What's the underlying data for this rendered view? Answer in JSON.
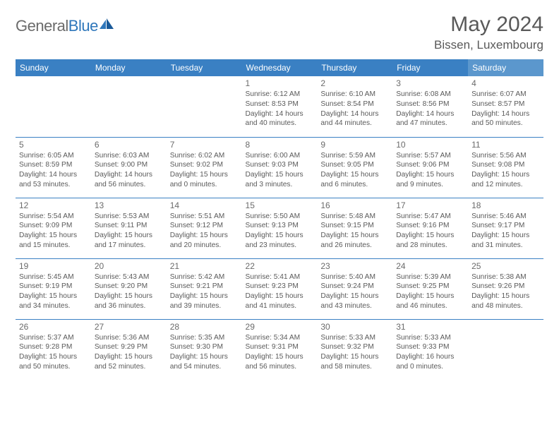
{
  "logo": {
    "part1": "General",
    "part2": "Blue"
  },
  "title": "May 2024",
  "location": "Bissen, Luxembourg",
  "colors": {
    "header_bg": "#3a80c3",
    "header_bg_sat": "#5b97cd",
    "header_text": "#ffffff",
    "border": "#3a80c3",
    "text_gray": "#6b6b6b",
    "detail_gray": "#5a5a5a",
    "title_gray": "#595959",
    "logo_gray": "#6b6b6b",
    "logo_blue": "#2f77bb",
    "background": "#ffffff"
  },
  "typography": {
    "title_fontsize": 30,
    "location_fontsize": 17,
    "logo_fontsize": 22,
    "dayheader_fontsize": 12,
    "daynum_fontsize": 12,
    "detail_fontsize": 10.2
  },
  "day_headers": [
    "Sunday",
    "Monday",
    "Tuesday",
    "Wednesday",
    "Thursday",
    "Friday",
    "Saturday"
  ],
  "weeks": [
    [
      null,
      null,
      null,
      {
        "n": "1",
        "sr": "6:12 AM",
        "ss": "8:53 PM",
        "dl": "14 hours and 40 minutes."
      },
      {
        "n": "2",
        "sr": "6:10 AM",
        "ss": "8:54 PM",
        "dl": "14 hours and 44 minutes."
      },
      {
        "n": "3",
        "sr": "6:08 AM",
        "ss": "8:56 PM",
        "dl": "14 hours and 47 minutes."
      },
      {
        "n": "4",
        "sr": "6:07 AM",
        "ss": "8:57 PM",
        "dl": "14 hours and 50 minutes."
      }
    ],
    [
      {
        "n": "5",
        "sr": "6:05 AM",
        "ss": "8:59 PM",
        "dl": "14 hours and 53 minutes."
      },
      {
        "n": "6",
        "sr": "6:03 AM",
        "ss": "9:00 PM",
        "dl": "14 hours and 56 minutes."
      },
      {
        "n": "7",
        "sr": "6:02 AM",
        "ss": "9:02 PM",
        "dl": "15 hours and 0 minutes."
      },
      {
        "n": "8",
        "sr": "6:00 AM",
        "ss": "9:03 PM",
        "dl": "15 hours and 3 minutes."
      },
      {
        "n": "9",
        "sr": "5:59 AM",
        "ss": "9:05 PM",
        "dl": "15 hours and 6 minutes."
      },
      {
        "n": "10",
        "sr": "5:57 AM",
        "ss": "9:06 PM",
        "dl": "15 hours and 9 minutes."
      },
      {
        "n": "11",
        "sr": "5:56 AM",
        "ss": "9:08 PM",
        "dl": "15 hours and 12 minutes."
      }
    ],
    [
      {
        "n": "12",
        "sr": "5:54 AM",
        "ss": "9:09 PM",
        "dl": "15 hours and 15 minutes."
      },
      {
        "n": "13",
        "sr": "5:53 AM",
        "ss": "9:11 PM",
        "dl": "15 hours and 17 minutes."
      },
      {
        "n": "14",
        "sr": "5:51 AM",
        "ss": "9:12 PM",
        "dl": "15 hours and 20 minutes."
      },
      {
        "n": "15",
        "sr": "5:50 AM",
        "ss": "9:13 PM",
        "dl": "15 hours and 23 minutes."
      },
      {
        "n": "16",
        "sr": "5:48 AM",
        "ss": "9:15 PM",
        "dl": "15 hours and 26 minutes."
      },
      {
        "n": "17",
        "sr": "5:47 AM",
        "ss": "9:16 PM",
        "dl": "15 hours and 28 minutes."
      },
      {
        "n": "18",
        "sr": "5:46 AM",
        "ss": "9:17 PM",
        "dl": "15 hours and 31 minutes."
      }
    ],
    [
      {
        "n": "19",
        "sr": "5:45 AM",
        "ss": "9:19 PM",
        "dl": "15 hours and 34 minutes."
      },
      {
        "n": "20",
        "sr": "5:43 AM",
        "ss": "9:20 PM",
        "dl": "15 hours and 36 minutes."
      },
      {
        "n": "21",
        "sr": "5:42 AM",
        "ss": "9:21 PM",
        "dl": "15 hours and 39 minutes."
      },
      {
        "n": "22",
        "sr": "5:41 AM",
        "ss": "9:23 PM",
        "dl": "15 hours and 41 minutes."
      },
      {
        "n": "23",
        "sr": "5:40 AM",
        "ss": "9:24 PM",
        "dl": "15 hours and 43 minutes."
      },
      {
        "n": "24",
        "sr": "5:39 AM",
        "ss": "9:25 PM",
        "dl": "15 hours and 46 minutes."
      },
      {
        "n": "25",
        "sr": "5:38 AM",
        "ss": "9:26 PM",
        "dl": "15 hours and 48 minutes."
      }
    ],
    [
      {
        "n": "26",
        "sr": "5:37 AM",
        "ss": "9:28 PM",
        "dl": "15 hours and 50 minutes."
      },
      {
        "n": "27",
        "sr": "5:36 AM",
        "ss": "9:29 PM",
        "dl": "15 hours and 52 minutes."
      },
      {
        "n": "28",
        "sr": "5:35 AM",
        "ss": "9:30 PM",
        "dl": "15 hours and 54 minutes."
      },
      {
        "n": "29",
        "sr": "5:34 AM",
        "ss": "9:31 PM",
        "dl": "15 hours and 56 minutes."
      },
      {
        "n": "30",
        "sr": "5:33 AM",
        "ss": "9:32 PM",
        "dl": "15 hours and 58 minutes."
      },
      {
        "n": "31",
        "sr": "5:33 AM",
        "ss": "9:33 PM",
        "dl": "16 hours and 0 minutes."
      },
      null
    ]
  ],
  "labels": {
    "sunrise": "Sunrise: ",
    "sunset": "Sunset: ",
    "daylight": "Daylight: "
  }
}
